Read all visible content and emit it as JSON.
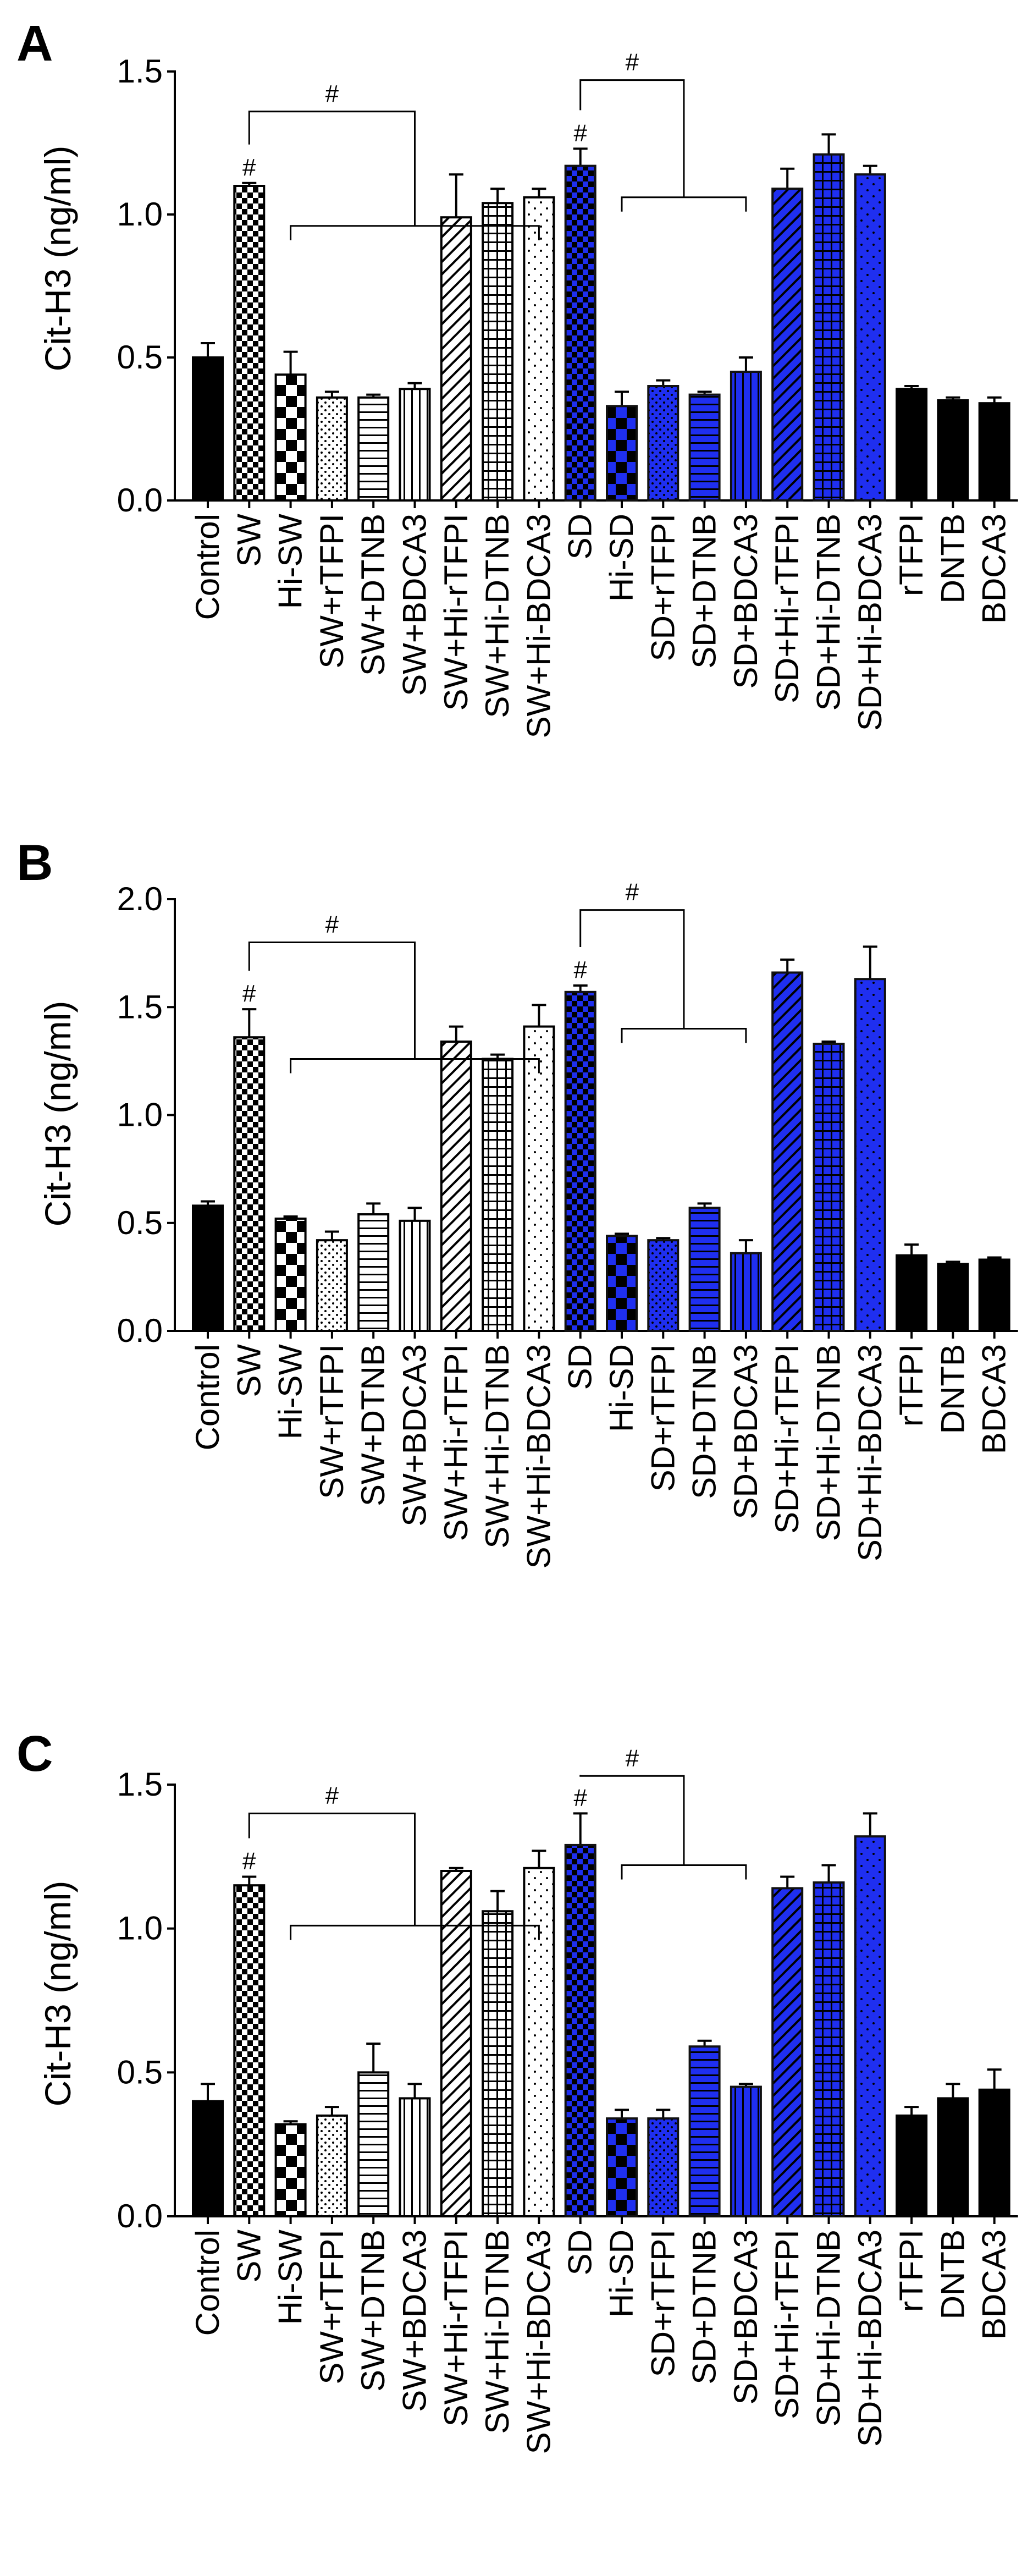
{
  "figure": {
    "panel_letters": [
      "A",
      "B",
      "C"
    ]
  },
  "chart_data": [
    {
      "type": "bar",
      "panel": "A",
      "ylabel": "Cit-H3 (ng/ml)",
      "ylim": [
        0,
        1.5
      ],
      "yticks": [
        "0.0",
        "0.5",
        "1.0",
        "1.5"
      ],
      "categories": [
        "Control",
        "SW",
        "Hi-SW",
        "SW+rTFPI",
        "SW+DTNB",
        "SW+BDCA3",
        "SW+Hi-rTFPI",
        "SW+Hi-DTNB",
        "SW+Hi-BDCA3",
        "SD",
        "Hi-SD",
        "SD+rTFPI",
        "SD+DTNB",
        "SD+BDCA3",
        "SD+Hi-rTFPI",
        "SD+Hi-DTNB",
        "SD+Hi-BDCA3",
        "rTFPI",
        "DNTB",
        "BDCA3"
      ],
      "values": [
        0.5,
        1.1,
        0.44,
        0.36,
        0.36,
        0.39,
        0.99,
        1.04,
        1.06,
        1.17,
        0.33,
        0.4,
        0.37,
        0.45,
        1.09,
        1.21,
        1.14,
        0.39,
        0.35,
        0.34
      ],
      "errors": [
        0.05,
        0.01,
        0.08,
        0.02,
        0.01,
        0.02,
        0.15,
        0.05,
        0.03,
        0.06,
        0.05,
        0.02,
        0.01,
        0.05,
        0.07,
        0.07,
        0.03,
        0.01,
        0.01,
        0.02
      ],
      "annotations": {
        "sw_marker": "#",
        "sw_bracket": "#",
        "sd_marker": "#",
        "sd_bracket": "#",
        "sw_bracket_level": 1.36,
        "sw_bracket_lower": 0.96,
        "sd_bracket_level": 1.47,
        "sd_bracket_lower": 1.06
      }
    },
    {
      "type": "bar",
      "panel": "B",
      "ylabel": "Cit-H3 (ng/ml)",
      "ylim": [
        0,
        2.0
      ],
      "yticks": [
        "0.0",
        "0.5",
        "1.0",
        "1.5",
        "2.0"
      ],
      "categories": [
        "Control",
        "SW",
        "Hi-SW",
        "SW+rTFPI",
        "SW+DTNB",
        "SW+BDCA3",
        "SW+Hi-rTFPI",
        "SW+Hi-DTNB",
        "SW+Hi-BDCA3",
        "SD",
        "Hi-SD",
        "SD+rTFPI",
        "SD+DTNB",
        "SD+BDCA3",
        "SD+Hi-rTFPI",
        "SD+Hi-DTNB",
        "SD+Hi-BDCA3",
        "rTFPI",
        "DNTB",
        "BDCA3"
      ],
      "values": [
        0.58,
        1.36,
        0.52,
        0.42,
        0.54,
        0.51,
        1.34,
        1.26,
        1.41,
        1.57,
        0.44,
        0.42,
        0.57,
        0.36,
        1.66,
        1.33,
        1.63,
        0.35,
        0.31,
        0.33
      ],
      "errors": [
        0.02,
        0.13,
        0.01,
        0.04,
        0.05,
        0.06,
        0.07,
        0.02,
        0.1,
        0.03,
        0.01,
        0.01,
        0.02,
        0.06,
        0.06,
        0.01,
        0.15,
        0.05,
        0.01,
        0.01
      ],
      "annotations": {
        "sw_marker": "#",
        "sw_bracket": "#",
        "sd_marker": "#",
        "sd_bracket": "#",
        "sw_bracket_level": 1.8,
        "sw_bracket_lower": 1.26,
        "sd_bracket_level": 1.95,
        "sd_bracket_lower": 1.4
      }
    },
    {
      "type": "bar",
      "panel": "C",
      "ylabel": "Cit-H3 (ng/ml)",
      "ylim": [
        0,
        1.5
      ],
      "yticks": [
        "0.0",
        "0.5",
        "1.0",
        "1.5"
      ],
      "categories": [
        "Control",
        "SW",
        "Hi-SW",
        "SW+rTFPI",
        "SW+DTNB",
        "SW+BDCA3",
        "SW+Hi-rTFPI",
        "SW+Hi-DTNB",
        "SW+Hi-BDCA3",
        "SD",
        "Hi-SD",
        "SD+rTFPI",
        "SD+DTNB",
        "SD+BDCA3",
        "SD+Hi-rTFPI",
        "SD+Hi-DTNB",
        "SD+Hi-BDCA3",
        "rTFPI",
        "DNTB",
        "BDCA3"
      ],
      "values": [
        0.4,
        1.15,
        0.32,
        0.35,
        0.5,
        0.41,
        1.2,
        1.06,
        1.21,
        1.29,
        0.34,
        0.34,
        0.59,
        0.45,
        1.14,
        1.16,
        1.32,
        0.35,
        0.41,
        0.44
      ],
      "errors": [
        0.06,
        0.03,
        0.01,
        0.03,
        0.1,
        0.05,
        0.01,
        0.07,
        0.06,
        0.11,
        0.03,
        0.03,
        0.02,
        0.01,
        0.04,
        0.06,
        0.08,
        0.03,
        0.05,
        0.07
      ],
      "annotations": {
        "sw_marker": "#",
        "sw_bracket": "#",
        "sd_marker": "#",
        "sd_bracket": "#",
        "sw_bracket_level": 1.4,
        "sw_bracket_lower": 1.01,
        "sd_bracket_level": 1.53,
        "sd_bracket_lower": 1.22
      }
    }
  ],
  "styles": {
    "black": "#000000",
    "blue": "#1f2ff0",
    "white": "#ffffff",
    "bar_fills": [
      "solid",
      "checker",
      "checker-big",
      "dots",
      "hlines",
      "vlines",
      "diag",
      "grid",
      "sparse-dots",
      "checker",
      "checker-big",
      "dots",
      "hlines",
      "vlines",
      "diag",
      "grid",
      "sparse-dots",
      "solid",
      "solid",
      "solid"
    ],
    "bar_colors": [
      "black",
      "black",
      "black",
      "black",
      "black",
      "black",
      "black",
      "black",
      "black",
      "blue",
      "blue",
      "blue",
      "blue",
      "blue",
      "blue",
      "blue",
      "blue",
      "black",
      "black",
      "black"
    ]
  }
}
